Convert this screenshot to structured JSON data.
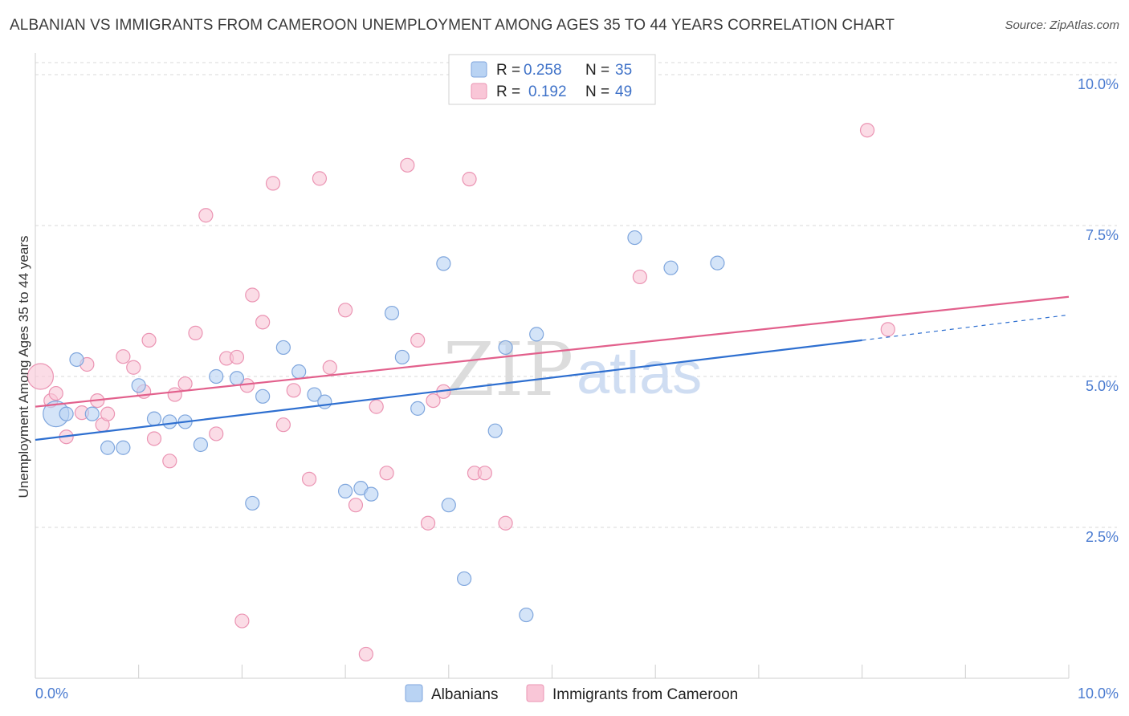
{
  "title": "ALBANIAN VS IMMIGRANTS FROM CAMEROON UNEMPLOYMENT AMONG AGES 35 TO 44 YEARS CORRELATION CHART",
  "source": "Source: ZipAtlas.com",
  "watermark": {
    "zip": "ZIP",
    "atlas": "atlas"
  },
  "colors": {
    "albanians_fill": "#b9d3f3",
    "albanians_stroke": "#7fa6dd",
    "albanians_line": "#2e6fd0",
    "cameroon_fill": "#f9c6d7",
    "cameroon_stroke": "#eb94b3",
    "cameroon_line": "#e2608c",
    "grid": "#d9d9d9",
    "tick_label": "#4a7bd0"
  },
  "legend_top": {
    "r_label": "R =",
    "n_label": "N =",
    "rows": [
      {
        "series": "Albanians",
        "r": "0.258",
        "n": "35"
      },
      {
        "series": "Immigrants from Cameroon",
        "r": "0.192",
        "n": "49"
      }
    ]
  },
  "chart_data": {
    "type": "scatter",
    "title": "ALBANIAN VS IMMIGRANTS FROM CAMEROON UNEMPLOYMENT AMONG AGES 35 TO 44 YEARS CORRELATION CHART",
    "xlabel": "",
    "ylabel": "Unemployment Among Ages 35 to 44 years",
    "xlim": [
      0,
      10
    ],
    "ylim": [
      0,
      10.2
    ],
    "x_tick_labels": [
      "0.0%",
      "10.0%"
    ],
    "y_ticks": [
      2.5,
      5.0,
      7.5,
      10.0
    ],
    "y_tick_labels": [
      "2.5%",
      "5.0%",
      "7.5%",
      "10.0%"
    ],
    "grid": true,
    "legend_position": "bottom",
    "series": [
      {
        "name": "Albanians",
        "trend": {
          "x0": 0,
          "y0": 3.95,
          "x1": 8.0,
          "y1": 5.6,
          "dashed_to_x": 10.0,
          "dashed_to_y": 6.02
        },
        "points": [
          [
            0.2,
            4.38,
            "big"
          ],
          [
            0.3,
            4.38
          ],
          [
            0.4,
            5.28
          ],
          [
            0.55,
            4.38
          ],
          [
            0.7,
            3.82
          ],
          [
            0.85,
            3.82
          ],
          [
            1.0,
            4.85
          ],
          [
            1.15,
            4.3
          ],
          [
            1.3,
            4.25
          ],
          [
            1.45,
            4.25
          ],
          [
            1.6,
            3.87
          ],
          [
            1.75,
            5.0
          ],
          [
            1.95,
            4.97
          ],
          [
            2.1,
            2.9
          ],
          [
            2.2,
            4.67
          ],
          [
            2.4,
            5.48
          ],
          [
            2.55,
            5.08
          ],
          [
            2.7,
            4.7
          ],
          [
            2.8,
            4.58
          ],
          [
            3.0,
            3.1
          ],
          [
            3.15,
            3.15
          ],
          [
            3.25,
            3.05
          ],
          [
            3.45,
            6.05
          ],
          [
            3.55,
            5.32
          ],
          [
            3.7,
            4.47
          ],
          [
            3.95,
            6.87
          ],
          [
            4.0,
            2.87
          ],
          [
            4.15,
            1.65
          ],
          [
            4.45,
            4.1
          ],
          [
            4.55,
            5.48
          ],
          [
            4.85,
            5.7
          ],
          [
            4.75,
            1.05
          ],
          [
            5.8,
            7.3
          ],
          [
            6.15,
            6.8
          ],
          [
            6.6,
            6.88
          ]
        ]
      },
      {
        "name": "Immigrants from Cameroon",
        "trend": {
          "x0": 0,
          "y0": 4.5,
          "x1": 10.0,
          "y1": 6.32
        },
        "points": [
          [
            0.05,
            5.0,
            "big"
          ],
          [
            0.15,
            4.6
          ],
          [
            0.2,
            4.72
          ],
          [
            0.3,
            4.0
          ],
          [
            0.45,
            4.4
          ],
          [
            0.5,
            5.2
          ],
          [
            0.6,
            4.6
          ],
          [
            0.65,
            4.2
          ],
          [
            0.7,
            4.38
          ],
          [
            0.85,
            5.33
          ],
          [
            0.95,
            5.15
          ],
          [
            1.05,
            4.75
          ],
          [
            1.1,
            5.6
          ],
          [
            1.15,
            3.97
          ],
          [
            1.3,
            3.6
          ],
          [
            1.35,
            4.7
          ],
          [
            1.45,
            4.88
          ],
          [
            1.55,
            5.72
          ],
          [
            1.65,
            7.67
          ],
          [
            1.75,
            4.05
          ],
          [
            1.85,
            5.3
          ],
          [
            1.95,
            5.32
          ],
          [
            2.0,
            0.95
          ],
          [
            2.05,
            4.85
          ],
          [
            2.1,
            6.35
          ],
          [
            2.2,
            5.9
          ],
          [
            2.3,
            8.2
          ],
          [
            2.4,
            4.2
          ],
          [
            2.5,
            4.77
          ],
          [
            2.65,
            3.3
          ],
          [
            2.75,
            8.28
          ],
          [
            2.85,
            5.15
          ],
          [
            3.0,
            6.1
          ],
          [
            3.1,
            2.87
          ],
          [
            3.2,
            0.4
          ],
          [
            3.3,
            4.5
          ],
          [
            3.4,
            3.4
          ],
          [
            3.6,
            8.5
          ],
          [
            3.7,
            5.6
          ],
          [
            3.8,
            2.57
          ],
          [
            3.85,
            4.6
          ],
          [
            3.95,
            4.75
          ],
          [
            4.2,
            8.27
          ],
          [
            4.25,
            3.4
          ],
          [
            4.35,
            3.4
          ],
          [
            4.55,
            2.57
          ],
          [
            5.85,
            6.65
          ],
          [
            8.05,
            9.08
          ],
          [
            8.25,
            5.78
          ]
        ]
      }
    ]
  },
  "legend_bottom": [
    {
      "series": "Albanians"
    },
    {
      "series": "Immigrants from Cameroon"
    }
  ]
}
